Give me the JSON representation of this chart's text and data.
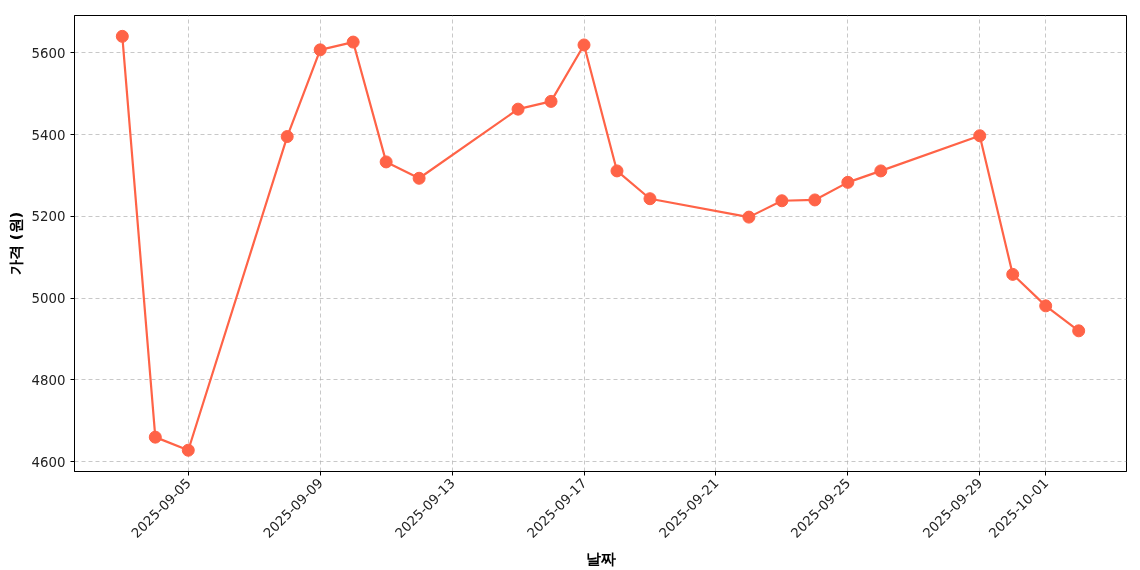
{
  "chart_data": {
    "type": "line",
    "xlabel": "날짜",
    "ylabel": "가격 (원)",
    "x": [
      "2025-09-03",
      "2025-09-04",
      "2025-09-05",
      "2025-09-08",
      "2025-09-09",
      "2025-09-10",
      "2025-09-11",
      "2025-09-12",
      "2025-09-15",
      "2025-09-16",
      "2025-09-17",
      "2025-09-18",
      "2025-09-19",
      "2025-09-22",
      "2025-09-23",
      "2025-09-24",
      "2025-09-25",
      "2025-09-26",
      "2025-09-29",
      "2025-09-30",
      "2025-10-01",
      "2025-10-02"
    ],
    "series": [
      {
        "color": "#ff6347",
        "values": [
          5640,
          4660,
          4628,
          5395,
          5607,
          5626,
          5333,
          5293,
          5462,
          5481,
          5619,
          5311,
          5243,
          5198,
          5238,
          5240,
          5283,
          5311,
          5397,
          5058,
          4981,
          4920
        ]
      }
    ],
    "xlim": [
      "2025-09-01T13:12",
      "2025-10-03T10:48"
    ],
    "ylim": [
      4576,
      5691
    ],
    "xticks": [
      "2025-09-05",
      "2025-09-09",
      "2025-09-13",
      "2025-09-17",
      "2025-09-21",
      "2025-09-25",
      "2025-09-29",
      "2025-10-01"
    ],
    "yticks": [
      4600,
      4800,
      5000,
      5200,
      5400,
      5600
    ],
    "grid": true,
    "marker": "circle",
    "line_style": "solid"
  }
}
